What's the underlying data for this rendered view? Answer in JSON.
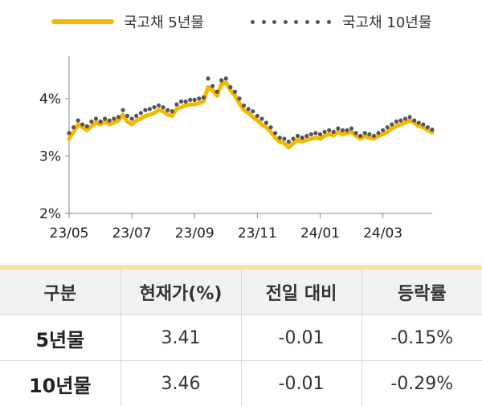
{
  "legend": {
    "series1": "국고채 5년물",
    "series2": "국고채 10년물",
    "series1_color": "#f5b800",
    "series2_color": "#555555"
  },
  "chart_data": {
    "type": "line",
    "title": "",
    "xlabel": "",
    "ylabel": "",
    "ylim": [
      2,
      4.6
    ],
    "yticks": [
      "2%",
      "3%",
      "4%"
    ],
    "xticks": [
      "23/05",
      "23/07",
      "23/09",
      "23/11",
      "24/01",
      "24/03"
    ],
    "grid": false,
    "legend_position": "top",
    "series": [
      {
        "name": "국고채 5년물",
        "style": "line",
        "values": [
          3.3,
          3.42,
          3.55,
          3.5,
          3.45,
          3.52,
          3.58,
          3.55,
          3.6,
          3.55,
          3.58,
          3.62,
          3.72,
          3.6,
          3.55,
          3.62,
          3.65,
          3.7,
          3.72,
          3.75,
          3.8,
          3.78,
          3.72,
          3.7,
          3.82,
          3.85,
          3.88,
          3.9,
          3.9,
          3.92,
          3.95,
          4.2,
          4.15,
          4.05,
          4.25,
          4.28,
          4.15,
          4.05,
          3.92,
          3.8,
          3.75,
          3.68,
          3.62,
          3.55,
          3.5,
          3.42,
          3.32,
          3.25,
          3.22,
          3.15,
          3.22,
          3.28,
          3.25,
          3.28,
          3.3,
          3.32,
          3.3,
          3.35,
          3.38,
          3.36,
          3.42,
          3.38,
          3.4,
          3.42,
          3.35,
          3.3,
          3.35,
          3.32,
          3.3,
          3.35,
          3.38,
          3.42,
          3.48,
          3.52,
          3.55,
          3.58,
          3.62,
          3.58,
          3.52,
          3.5,
          3.45,
          3.41
        ]
      },
      {
        "name": "국고채 10년물",
        "style": "dots",
        "values": [
          3.4,
          3.5,
          3.62,
          3.55,
          3.52,
          3.6,
          3.65,
          3.6,
          3.65,
          3.62,
          3.65,
          3.68,
          3.8,
          3.7,
          3.65,
          3.7,
          3.75,
          3.8,
          3.82,
          3.85,
          3.88,
          3.85,
          3.8,
          3.78,
          3.9,
          3.95,
          3.95,
          3.98,
          3.98,
          4.0,
          4.02,
          4.35,
          4.22,
          4.12,
          4.32,
          4.35,
          4.2,
          4.12,
          4.0,
          3.88,
          3.82,
          3.78,
          3.7,
          3.65,
          3.58,
          3.5,
          3.4,
          3.32,
          3.3,
          3.25,
          3.3,
          3.35,
          3.32,
          3.35,
          3.38,
          3.4,
          3.38,
          3.42,
          3.45,
          3.42,
          3.48,
          3.45,
          3.45,
          3.48,
          3.4,
          3.35,
          3.4,
          3.38,
          3.35,
          3.4,
          3.45,
          3.5,
          3.55,
          3.6,
          3.62,
          3.65,
          3.68,
          3.62,
          3.58,
          3.55,
          3.5,
          3.46
        ]
      }
    ]
  },
  "table": {
    "headers": [
      "구분",
      "현재가(%)",
      "전일 대비",
      "등락률"
    ],
    "rows": [
      [
        "5년물",
        "3.41",
        "-0.01",
        "-0.15%"
      ],
      [
        "10년물",
        "3.46",
        "-0.01",
        "-0.29%"
      ]
    ]
  }
}
